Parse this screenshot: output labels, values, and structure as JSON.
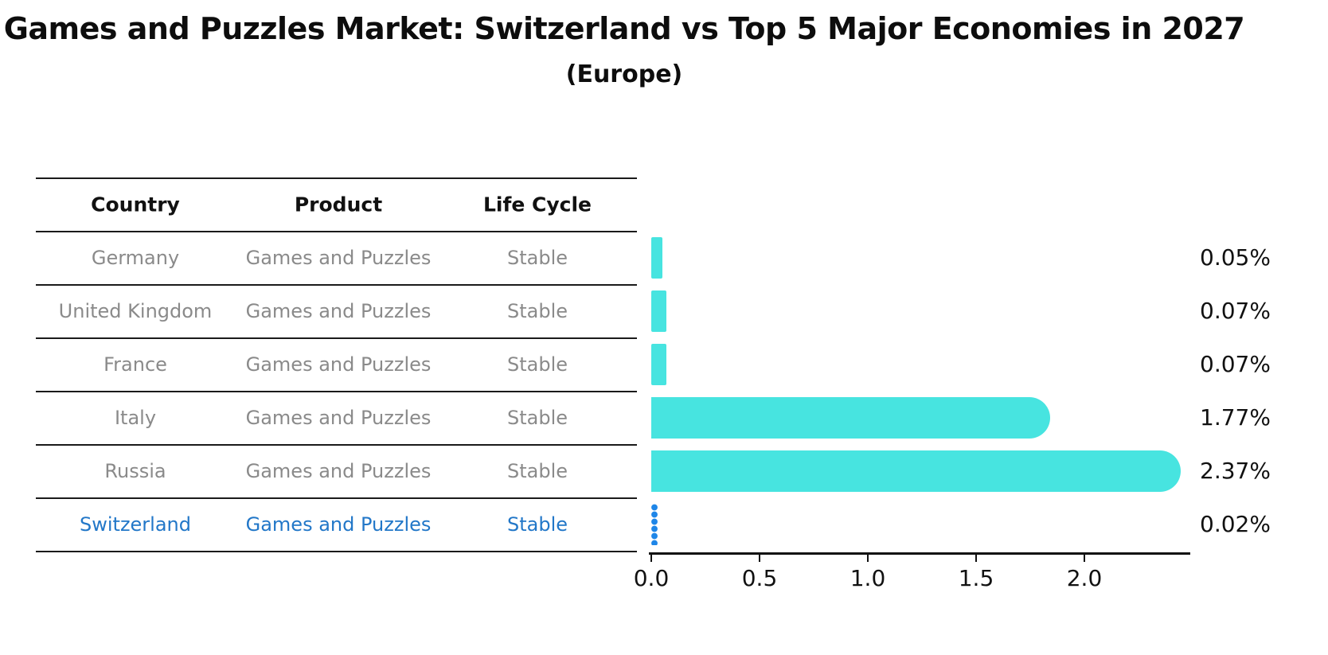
{
  "title": "Games and Puzzles Market: Switzerland vs Top 5 Major Economies in 2027",
  "subtitle": "(Europe)",
  "table": {
    "headers": [
      "Country",
      "Product",
      "Life Cycle"
    ],
    "rows": [
      {
        "country": "Germany",
        "product": "Games and Puzzles",
        "life_cycle": "Stable",
        "value": 0.05,
        "value_label": "0.05%",
        "highlight": false
      },
      {
        "country": "United Kingdom",
        "product": "Games and Puzzles",
        "life_cycle": "Stable",
        "value": 0.07,
        "value_label": "0.07%",
        "highlight": false
      },
      {
        "country": "France",
        "product": "Games and Puzzles",
        "life_cycle": "Stable",
        "value": 0.07,
        "value_label": "0.07%",
        "highlight": false
      },
      {
        "country": "Italy",
        "product": "Games and Puzzles",
        "life_cycle": "Stable",
        "value": 1.77,
        "value_label": "1.77%",
        "highlight": false
      },
      {
        "country": "Russia",
        "product": "Games and Puzzles",
        "life_cycle": "Stable",
        "value": 2.37,
        "value_label": "2.37%",
        "highlight": false
      },
      {
        "country": "Switzerland",
        "product": "Games and Puzzles",
        "life_cycle": "Stable",
        "value": 0.02,
        "value_label": "0.02%",
        "highlight": true
      }
    ]
  },
  "axis": {
    "tick_labels": [
      "0.0",
      "0.5",
      "1.0",
      "1.5",
      "2.0"
    ],
    "tick_values": [
      0.0,
      0.5,
      1.0,
      1.5,
      2.0
    ],
    "max": 2.48
  },
  "colors": {
    "bar_cyan": "#47e4e0",
    "highlight_marker_blue": "#1e86e8",
    "highlight_text_blue": "#2277c8",
    "row_text_gray": "#8a8a8a",
    "header_text": "#111111",
    "axis_black": "#111111"
  },
  "chart_data": {
    "type": "bar",
    "orientation": "horizontal",
    "title": "Games and Puzzles Market: Switzerland vs Top 5 Major Economies in 2027",
    "subtitle": "(Europe)",
    "categories": [
      "Germany",
      "United Kingdom",
      "France",
      "Italy",
      "Russia",
      "Switzerland"
    ],
    "values": [
      0.05,
      0.07,
      0.07,
      1.77,
      2.37,
      0.02
    ],
    "value_labels": [
      "0.05%",
      "0.07%",
      "0.07%",
      "1.77%",
      "2.37%",
      "0.02%"
    ],
    "highlighted_category": "Switzerland",
    "table_columns": [
      "Country",
      "Product",
      "Life Cycle"
    ],
    "table_rows": [
      [
        "Germany",
        "Games and Puzzles",
        "Stable"
      ],
      [
        "United Kingdom",
        "Games and Puzzles",
        "Stable"
      ],
      [
        "France",
        "Games and Puzzles",
        "Stable"
      ],
      [
        "Italy",
        "Games and Puzzles",
        "Stable"
      ],
      [
        "Russia",
        "Games and Puzzles",
        "Stable"
      ],
      [
        "Switzerland",
        "Games and Puzzles",
        "Stable"
      ]
    ],
    "xlabel": "",
    "ylabel": "",
    "xlim": [
      0,
      2.48
    ],
    "xticks": [
      0.0,
      0.5,
      1.0,
      1.5,
      2.0
    ],
    "grid": false,
    "legend": false
  }
}
